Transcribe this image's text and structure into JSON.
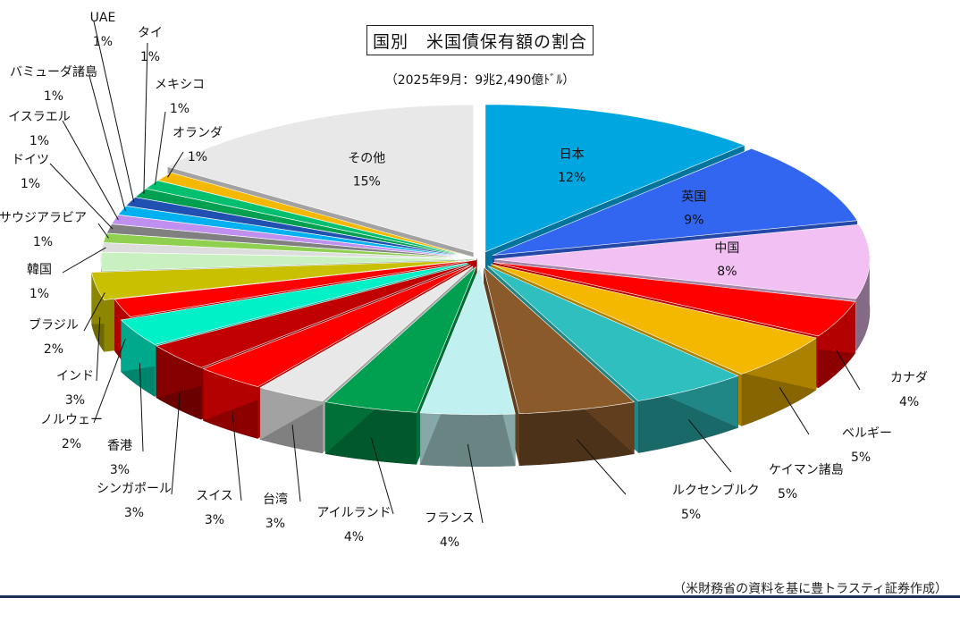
{
  "chart_data": {
    "type": "pie",
    "title": "国別　米国債保有額の割合",
    "subtitle": "（2025年9月：9兆2,490億ﾄﾞﾙ）",
    "source": "（米財務省の資料を基に豊トラスティ証券作成）",
    "slices": [
      {
        "name": "日本",
        "value": 12,
        "label": "12%",
        "color": "#00a6e0"
      },
      {
        "name": "英国",
        "value": 9,
        "label": "9%",
        "color": "#3366f0"
      },
      {
        "name": "中国",
        "value": 8,
        "label": "8%",
        "color": "#f2c0f2"
      },
      {
        "name": "カナダ",
        "value": 4,
        "label": "4%",
        "color": "#ff0000"
      },
      {
        "name": "ベルギー",
        "value": 5,
        "label": "5%",
        "color": "#f5b800"
      },
      {
        "name": "ケイマン諸島",
        "value": 5,
        "label": "5%",
        "color": "#2fbfbf"
      },
      {
        "name": "ルクセンブルク",
        "value": 5,
        "label": "5%",
        "color": "#8b5a2b"
      },
      {
        "name": "フランス",
        "value": 4,
        "label": "4%",
        "color": "#c0f0f0"
      },
      {
        "name": "アイルランド",
        "value": 4,
        "label": "4%",
        "color": "#00a050"
      },
      {
        "name": "台湾",
        "value": 3,
        "label": "3%",
        "color": "#e8e8e8"
      },
      {
        "name": "スイス",
        "value": 3,
        "label": "3%",
        "color": "#ff0000"
      },
      {
        "name": "シンガポール",
        "value": 3,
        "label": "3%",
        "color": "#c00000"
      },
      {
        "name": "香港",
        "value": 3,
        "label": "3%",
        "color": "#00f0c8"
      },
      {
        "name": "ノルウェー",
        "value": 2,
        "label": "2%",
        "color": "#ff0000"
      },
      {
        "name": "インド",
        "value": 3,
        "label": "3%",
        "color": "#c8c000"
      },
      {
        "name": "ブラジル",
        "value": 2,
        "label": "2%",
        "color": "#c8f0c0"
      },
      {
        "name": "韓国",
        "value": 1,
        "label": "1%",
        "color": "#dddddd"
      },
      {
        "name": "サウジアラビア",
        "value": 1,
        "label": "1%",
        "color": "#90d050"
      },
      {
        "name": "ドイツ",
        "value": 1,
        "label": "1%",
        "color": "#808080"
      },
      {
        "name": "イスラエル",
        "value": 1,
        "label": "1%",
        "color": "#c090f0"
      },
      {
        "name": "バミューダ諸島",
        "value": 1,
        "label": "1%",
        "color": "#00b0f0"
      },
      {
        "name": "UAE",
        "value": 1,
        "label": "1%",
        "color": "#2050b0"
      },
      {
        "name": "タイ",
        "value": 1,
        "label": "1%",
        "color": "#00a050"
      },
      {
        "name": "メキシコ",
        "value": 1,
        "label": "1%",
        "color": "#00c070"
      },
      {
        "name": "オランダ",
        "value": 1,
        "label": "1%",
        "color": "#f5b800"
      },
      {
        "name": "その他",
        "value": 15,
        "label": "15%",
        "color": "#e8e8e8"
      }
    ]
  }
}
